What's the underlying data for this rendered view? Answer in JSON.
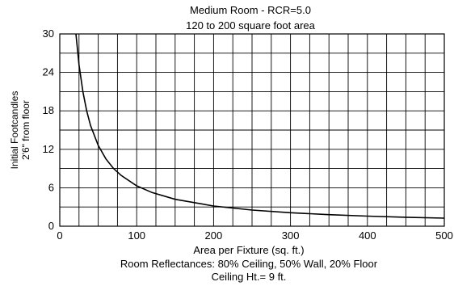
{
  "chart_data": {
    "type": "line",
    "title": "Medium Room - RCR=5.0",
    "subtitle": "120 to 200 square foot area",
    "ylabel_lines": [
      "Initial Footcandles",
      "2'6\" from floor"
    ],
    "xlabel": "Area per Fixture (sq. ft.)",
    "notes": [
      "Room Reflectances: 80% Ceiling, 50% Wall, 20% Floor",
      "Ceiling Ht.= 9 ft."
    ],
    "xlim": [
      0,
      500
    ],
    "ylim": [
      0,
      30
    ],
    "x_ticks": [
      "0",
      "100",
      "200",
      "300",
      "400",
      "500"
    ],
    "y_ticks": [
      "0",
      "6",
      "12",
      "18",
      "24",
      "30"
    ],
    "grid": true,
    "series": [
      {
        "x": [
          21,
          25,
          30,
          35,
          40,
          50,
          60,
          70,
          80,
          100,
          120,
          150,
          200,
          250,
          300,
          350,
          400,
          450,
          500
        ],
        "y": [
          30,
          25.2,
          21,
          18,
          15.7,
          12.6,
          10.5,
          9.0,
          7.9,
          6.3,
          5.25,
          4.2,
          3.15,
          2.52,
          2.1,
          1.8,
          1.58,
          1.4,
          1.26
        ]
      }
    ],
    "color": "#000000"
  }
}
